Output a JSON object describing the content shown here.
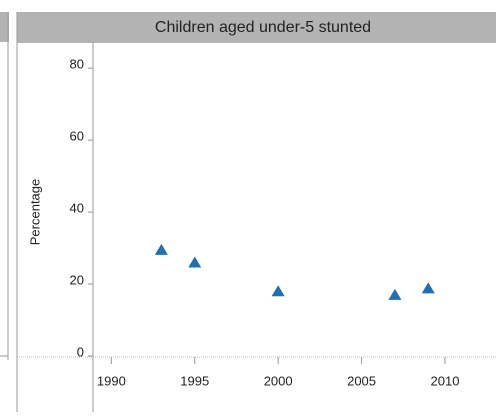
{
  "chart_data": {
    "type": "scatter",
    "title": "Children aged under-5 stunted",
    "y_label": "Percentage",
    "series": [
      {
        "color": "#1f6fb2",
        "x": [
          1993,
          1995,
          2000,
          2007,
          2009
        ],
        "values": [
          29.5,
          26,
          18,
          17,
          18.8
        ]
      }
    ],
    "xlim": [
      1988.9,
      2012.7
    ],
    "xticks": [
      1990,
      1995,
      2000,
      2005,
      2010
    ],
    "ylim": [
      0,
      87
    ],
    "yticks": [
      0,
      20,
      40,
      60,
      80
    ]
  }
}
